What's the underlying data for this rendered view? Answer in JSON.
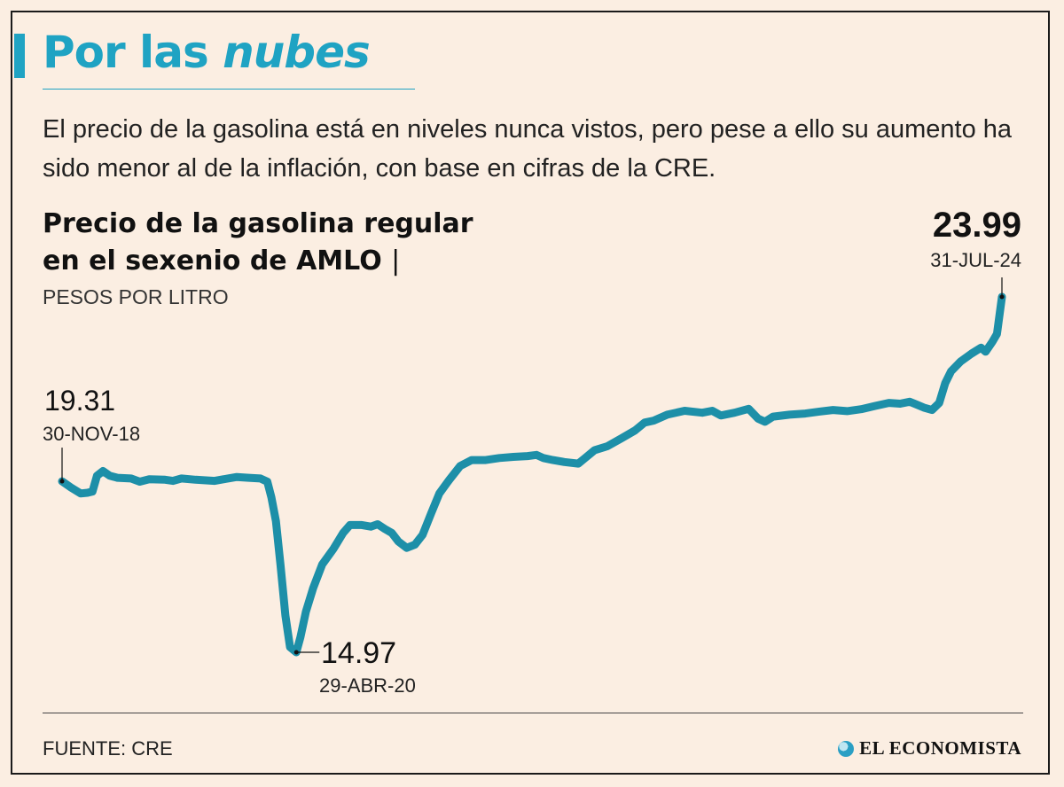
{
  "header": {
    "title_plain": "Por las ",
    "title_emphasis": "nubes",
    "subtitle": "El precio de la gasolina está en niveles nunca vistos, pero pese a ello su aumento ha sido menor al de la inflación, con base en cifras de la CRE."
  },
  "chart_header": {
    "title_line1": "Precio de la gasolina regular",
    "title_line2": "en el sexenio de AMLO",
    "separator": "|",
    "units": "PESOS POR LITRO"
  },
  "footer": {
    "source": "FUENTE: CRE",
    "brand": "EL ECONOMISTA"
  },
  "colors": {
    "accent": "#1fa3c3",
    "line": "#1d8fa8",
    "background": "#fbeee2",
    "text": "#222222"
  },
  "chart_data": {
    "type": "line",
    "title": "Precio de la gasolina regular en el sexenio de AMLO",
    "ylabel": "PESOS POR LITRO",
    "xlim": [
      "2018-11-30",
      "2024-07-31"
    ],
    "ylim": [
      14.5,
      24.3
    ],
    "grid": false,
    "series": [
      {
        "points": [
          [
            "2018-11-30",
            19.31
          ],
          [
            "2018-12-20",
            19.15
          ],
          [
            "2019-01-10",
            19.0
          ],
          [
            "2019-01-25",
            19.02
          ],
          [
            "2019-02-05",
            19.05
          ],
          [
            "2019-02-15",
            19.45
          ],
          [
            "2019-02-28",
            19.57
          ],
          [
            "2019-03-15",
            19.45
          ],
          [
            "2019-04-01",
            19.4
          ],
          [
            "2019-05-01",
            19.38
          ],
          [
            "2019-05-20",
            19.3
          ],
          [
            "2019-06-10",
            19.36
          ],
          [
            "2019-07-15",
            19.35
          ],
          [
            "2019-08-01",
            19.32
          ],
          [
            "2019-08-20",
            19.38
          ],
          [
            "2019-09-20",
            19.35
          ],
          [
            "2019-11-01",
            19.32
          ],
          [
            "2019-11-20",
            19.36
          ],
          [
            "2019-12-20",
            19.42
          ],
          [
            "2020-01-15",
            19.4
          ],
          [
            "2020-02-10",
            19.38
          ],
          [
            "2020-02-25",
            19.3
          ],
          [
            "2020-03-05",
            18.9
          ],
          [
            "2020-03-15",
            18.3
          ],
          [
            "2020-03-25",
            17.2
          ],
          [
            "2020-04-05",
            15.9
          ],
          [
            "2020-04-15",
            15.1
          ],
          [
            "2020-04-29",
            14.97
          ],
          [
            "2020-05-08",
            15.35
          ],
          [
            "2020-05-20",
            16.0
          ],
          [
            "2020-06-05",
            16.6
          ],
          [
            "2020-06-25",
            17.2
          ],
          [
            "2020-07-20",
            17.6
          ],
          [
            "2020-08-10",
            18.0
          ],
          [
            "2020-08-25",
            18.2
          ],
          [
            "2020-09-20",
            18.2
          ],
          [
            "2020-10-10",
            18.16
          ],
          [
            "2020-10-25",
            18.22
          ],
          [
            "2020-11-10",
            18.1
          ],
          [
            "2020-11-25",
            18.0
          ],
          [
            "2020-12-10",
            17.78
          ],
          [
            "2020-12-28",
            17.62
          ],
          [
            "2021-01-15",
            17.7
          ],
          [
            "2021-02-01",
            17.95
          ],
          [
            "2021-02-20",
            18.5
          ],
          [
            "2021-03-10",
            19.0
          ],
          [
            "2021-04-01",
            19.35
          ],
          [
            "2021-04-25",
            19.7
          ],
          [
            "2021-05-20",
            19.85
          ],
          [
            "2021-06-20",
            19.85
          ],
          [
            "2021-07-20",
            19.9
          ],
          [
            "2021-08-20",
            19.93
          ],
          [
            "2021-09-20",
            19.95
          ],
          [
            "2021-10-10",
            19.98
          ],
          [
            "2021-10-25",
            19.9
          ],
          [
            "2021-11-15",
            19.85
          ],
          [
            "2021-12-10",
            19.8
          ],
          [
            "2022-01-10",
            19.76
          ],
          [
            "2022-01-25",
            19.9
          ],
          [
            "2022-02-15",
            20.1
          ],
          [
            "2022-03-15",
            20.2
          ],
          [
            "2022-04-15",
            20.4
          ],
          [
            "2022-05-15",
            20.6
          ],
          [
            "2022-06-05",
            20.8
          ],
          [
            "2022-06-25",
            20.85
          ],
          [
            "2022-07-25",
            21.0
          ],
          [
            "2022-09-01",
            21.1
          ],
          [
            "2022-10-10",
            21.05
          ],
          [
            "2022-11-01",
            21.1
          ],
          [
            "2022-11-20",
            20.98
          ],
          [
            "2022-12-20",
            21.05
          ],
          [
            "2023-01-20",
            21.15
          ],
          [
            "2023-02-10",
            20.9
          ],
          [
            "2023-02-25",
            20.82
          ],
          [
            "2023-03-15",
            20.95
          ],
          [
            "2023-04-20",
            21.0
          ],
          [
            "2023-05-25",
            21.03
          ],
          [
            "2023-06-25",
            21.08
          ],
          [
            "2023-07-25",
            21.12
          ],
          [
            "2023-08-25",
            21.09
          ],
          [
            "2023-09-25",
            21.14
          ],
          [
            "2023-10-25",
            21.22
          ],
          [
            "2023-11-25",
            21.3
          ],
          [
            "2023-12-20",
            21.28
          ],
          [
            "2024-01-10",
            21.33
          ],
          [
            "2024-01-25",
            21.26
          ],
          [
            "2024-02-10",
            21.18
          ],
          [
            "2024-02-28",
            21.12
          ],
          [
            "2024-03-15",
            21.3
          ],
          [
            "2024-03-28",
            21.8
          ],
          [
            "2024-04-10",
            22.1
          ],
          [
            "2024-05-01",
            22.35
          ],
          [
            "2024-05-25",
            22.55
          ],
          [
            "2024-06-15",
            22.7
          ],
          [
            "2024-06-25",
            22.6
          ],
          [
            "2024-07-10",
            22.85
          ],
          [
            "2024-07-20",
            23.05
          ],
          [
            "2024-07-31",
            23.99
          ]
        ]
      }
    ],
    "annotations": [
      {
        "value": "19.31",
        "date": "30-NOV-18",
        "x": "2018-11-30",
        "y": 19.31
      },
      {
        "value": "14.97",
        "date": "29-ABR-20",
        "x": "2020-04-29",
        "y": 14.97
      },
      {
        "value": "23.99",
        "date": "31-JUL-24",
        "x": "2024-07-31",
        "y": 23.99
      }
    ]
  }
}
